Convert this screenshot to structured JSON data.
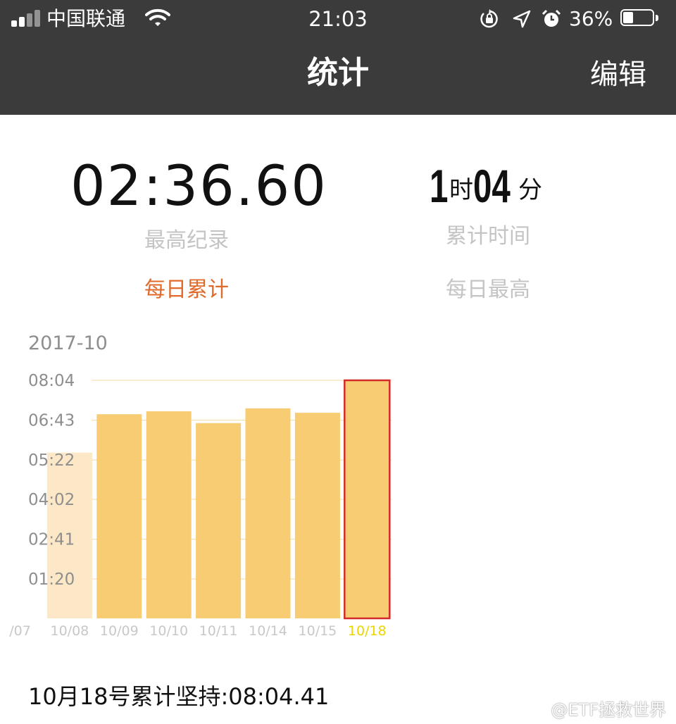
{
  "status_bar": {
    "carrier": "中国联通",
    "time": "21:03",
    "battery_percent": "36%",
    "battery_level": 0.36,
    "icons": [
      "signal-icon",
      "wifi-icon",
      "rotation-lock-icon",
      "location-icon",
      "alarm-icon",
      "battery-icon"
    ]
  },
  "nav": {
    "title": "统计",
    "edit_label": "编辑"
  },
  "stats": {
    "best_record_value": "02:36.60",
    "best_record_label": "最高纪录",
    "total_hours": "1",
    "total_hours_unit": "时",
    "total_minutes": "04",
    "total_minutes_unit": "分",
    "total_label": "累计时间"
  },
  "tabs": {
    "daily_total": "每日累计",
    "daily_best": "每日最高",
    "active": "daily_total"
  },
  "chart_data": {
    "type": "bar",
    "month_label": "2017-10",
    "categories": [
      "/07",
      "10/08",
      "10/09",
      "10/10",
      "10/11",
      "10/14",
      "10/15",
      "10/18"
    ],
    "values_seconds": [
      null,
      337,
      415,
      421,
      397,
      427,
      418,
      484
    ],
    "y_tick_labels": [
      "08:04",
      "06:43",
      "05:22",
      "04:02",
      "02:41",
      "01:20"
    ],
    "y_tick_values_seconds": [
      484,
      403,
      322,
      242,
      161,
      80
    ],
    "ylim_seconds": [
      0,
      484
    ],
    "selected": "10/18",
    "colors": {
      "bar": "#f8cc72",
      "bar_faded": "#fce8c6",
      "selected_border": "#d42a2a",
      "selected_label": "#ecd400",
      "axis_label": "#c8c8c8"
    }
  },
  "footer": {
    "summary": "10月18号累计坚持:08:04.41",
    "watermark": "@ETF拯救世界"
  }
}
